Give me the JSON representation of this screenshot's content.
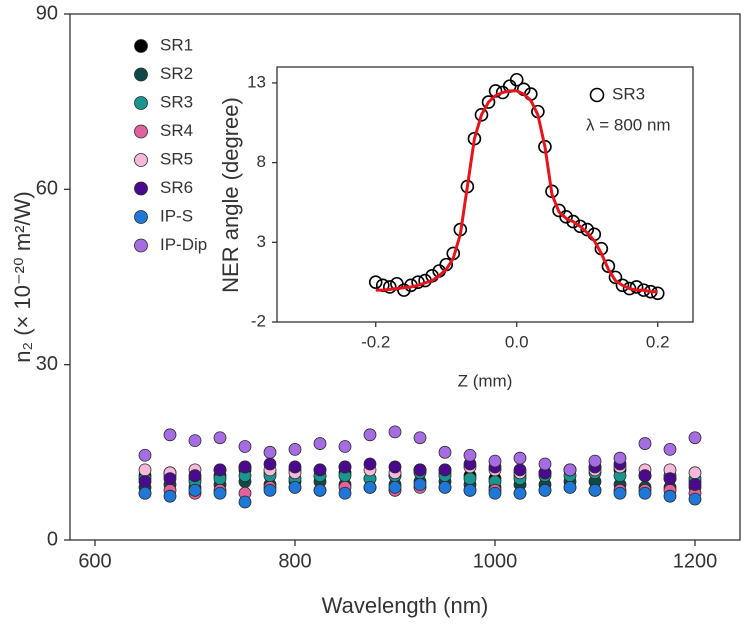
{
  "chart_data": [
    {
      "type": "scatter",
      "x_label": "Wavelength (nm)",
      "y_label": "n₂ (× 10⁻²⁰ m²/W)",
      "xlim": [
        575,
        1245
      ],
      "xticks": [
        600,
        800,
        1000,
        1200
      ],
      "ylim": [
        0,
        90
      ],
      "yticks": [
        0,
        30,
        60,
        90
      ],
      "legend": "upper left",
      "x": [
        650,
        675,
        700,
        725,
        750,
        775,
        800,
        825,
        850,
        875,
        900,
        925,
        950,
        975,
        1000,
        1025,
        1050,
        1075,
        1100,
        1125,
        1150,
        1175,
        1200
      ],
      "series": [
        {
          "name": "SR1",
          "color": "#000000",
          "values": [
            11,
            11.5,
            10.5,
            11,
            12,
            11.5,
            12,
            11,
            11.5,
            10.5,
            11,
            12,
            11.5,
            11,
            10.5,
            11,
            11.5,
            12,
            12.5,
            12,
            11,
            10.5,
            10
          ]
        },
        {
          "name": "SR2",
          "color": "#0f4a48",
          "values": [
            9,
            9.5,
            9,
            9.5,
            10,
            9.5,
            10,
            10,
            9.5,
            9,
            9.5,
            10,
            10,
            9.5,
            9,
            9.5,
            9.5,
            10,
            10,
            9.5,
            9,
            9,
            9
          ]
        },
        {
          "name": "SR3",
          "color": "#1a9690",
          "values": [
            10.5,
            11,
            10,
            10.5,
            11,
            11,
            10.5,
            11,
            11,
            10.5,
            11,
            11.5,
            11,
            10.5,
            10,
            10.5,
            11,
            11,
            11.5,
            11,
            11,
            11,
            10.5
          ]
        },
        {
          "name": "SR4",
          "color": "#e2629f",
          "values": [
            8,
            8.5,
            8,
            8.5,
            8,
            9,
            9,
            8.5,
            9,
            9,
            8.5,
            9,
            9,
            8.5,
            8.5,
            8,
            8.5,
            9,
            8.5,
            8.5,
            8.5,
            8.5,
            8
          ]
        },
        {
          "name": "SR5",
          "color": "#f6b9da",
          "values": [
            12,
            11.5,
            12,
            12,
            12.5,
            12,
            11.5,
            12,
            12.5,
            12,
            11.5,
            12,
            12,
            12.5,
            12,
            11.5,
            11.5,
            12,
            12,
            12.5,
            12,
            12,
            11.5
          ]
        },
        {
          "name": "SR6",
          "color": "#4a0a8e",
          "values": [
            10,
            10.5,
            11,
            12,
            12.5,
            13,
            12.5,
            12,
            12.5,
            13,
            12.5,
            12,
            12,
            13,
            12.5,
            12,
            11.5,
            12,
            12.5,
            13,
            11,
            10.5,
            9.5
          ]
        },
        {
          "name": "IP-S",
          "color": "#1f78d8",
          "values": [
            8,
            7.5,
            8.5,
            8,
            6.5,
            8.5,
            9,
            8.5,
            8,
            9,
            9,
            9.5,
            9,
            8.5,
            8,
            8,
            8.5,
            9,
            8.5,
            8,
            8,
            7.5,
            7
          ]
        },
        {
          "name": "IP-Dip",
          "color": "#a66ce2",
          "values": [
            14.5,
            18,
            17,
            17.5,
            16,
            15,
            15.5,
            16.5,
            16,
            18,
            18.5,
            17.5,
            15,
            14.5,
            13.5,
            14,
            13,
            12,
            13.5,
            14,
            16.5,
            15.5,
            17.5
          ]
        }
      ]
    },
    {
      "type": "scatter",
      "x_label": "Z (mm)",
      "y_label": "NER angle (degree)",
      "xlim": [
        -0.34,
        0.25
      ],
      "xticks": [
        -0.2,
        {
          "value": 0,
          "label": "0.0"
        },
        0.2
      ],
      "ylim": [
        -2,
        14
      ],
      "yticks": [
        -2,
        3,
        8,
        13
      ],
      "annotation": "λ = 800 nm",
      "x": [
        -0.2,
        -0.19,
        -0.18,
        -0.17,
        -0.16,
        -0.15,
        -0.14,
        -0.13,
        -0.12,
        -0.11,
        -0.1,
        -0.09,
        -0.08,
        -0.07,
        -0.06,
        -0.05,
        -0.04,
        -0.03,
        -0.02,
        -0.01,
        0,
        0.01,
        0.02,
        0.03,
        0.04,
        0.05,
        0.06,
        0.07,
        0.08,
        0.09,
        0.1,
        0.11,
        0.12,
        0.13,
        0.14,
        0.15,
        0.16,
        0.17,
        0.18,
        0.19,
        0.2
      ],
      "series": [
        {
          "name": "SR3",
          "color": "#000000",
          "values": [
            0.5,
            0.3,
            0.2,
            0.4,
            0,
            0.3,
            0.5,
            0.6,
            0.9,
            1.2,
            1.6,
            2.3,
            3.8,
            6.5,
            9.5,
            11,
            11.8,
            12.5,
            12.4,
            12.8,
            13.2,
            12.6,
            12.3,
            11.2,
            9,
            6.2,
            5,
            4.6,
            4.3,
            4,
            3.8,
            3.5,
            2.6,
            1.5,
            0.8,
            0.3,
            0.1,
            0.2,
            0,
            -0.1,
            -0.2
          ]
        }
      ],
      "fit_color": "#e8141c",
      "fit_values": [
        0,
        0,
        0.05,
        0.1,
        0.15,
        0.2,
        0.3,
        0.45,
        0.6,
        0.9,
        1.3,
        2,
        3.5,
        6.5,
        9.5,
        11,
        11.8,
        12.2,
        12.4,
        12.5,
        12.5,
        12.3,
        11.9,
        11,
        9,
        6,
        4.9,
        4.5,
        4.3,
        4,
        3.6,
        3.1,
        2.3,
        1.3,
        0.6,
        0.3,
        0.1,
        0,
        0,
        -0.1,
        -0.1
      ]
    }
  ]
}
